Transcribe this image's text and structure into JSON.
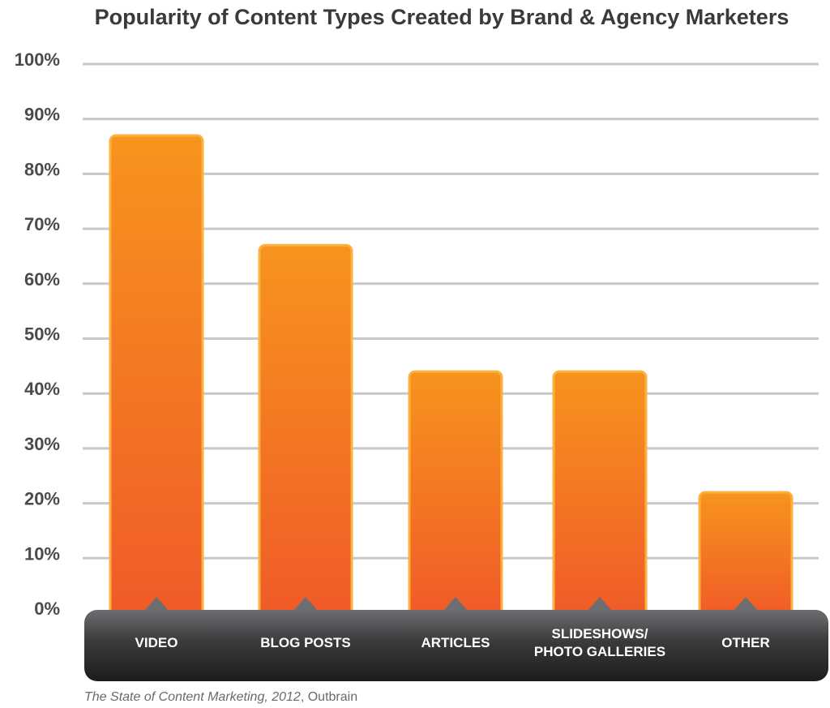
{
  "chart_data": {
    "type": "bar",
    "title": "Popularity of Content Types Created by Brand & Agency Marketers",
    "xlabel": "",
    "ylabel": "",
    "categories": [
      [
        "VIDEO"
      ],
      [
        "BLOG POSTS"
      ],
      [
        "ARTICLES"
      ],
      [
        "SLIDESHOWS/",
        "PHOTO GALLERIES"
      ],
      [
        "OTHER"
      ]
    ],
    "values": [
      87,
      67,
      44,
      44,
      22
    ],
    "ylim": [
      0,
      100
    ],
    "yticks": [
      "0%",
      "10%",
      "20%",
      "30%",
      "40%",
      "50%",
      "60%",
      "70%",
      "80%",
      "90%",
      "100%"
    ],
    "grid": true,
    "legend": "none",
    "colors": {
      "bar_top": "#f7941d",
      "bar_bottom": "#f05a28",
      "bar_border": "#fbb040",
      "gridline": "#c8c8c8",
      "axis_band_top": "#6d6e71",
      "axis_band_bottom": "#1c1c1c"
    }
  },
  "source": {
    "italic": "The State of Content Marketing, 2012",
    "plain": ", Outbrain"
  }
}
